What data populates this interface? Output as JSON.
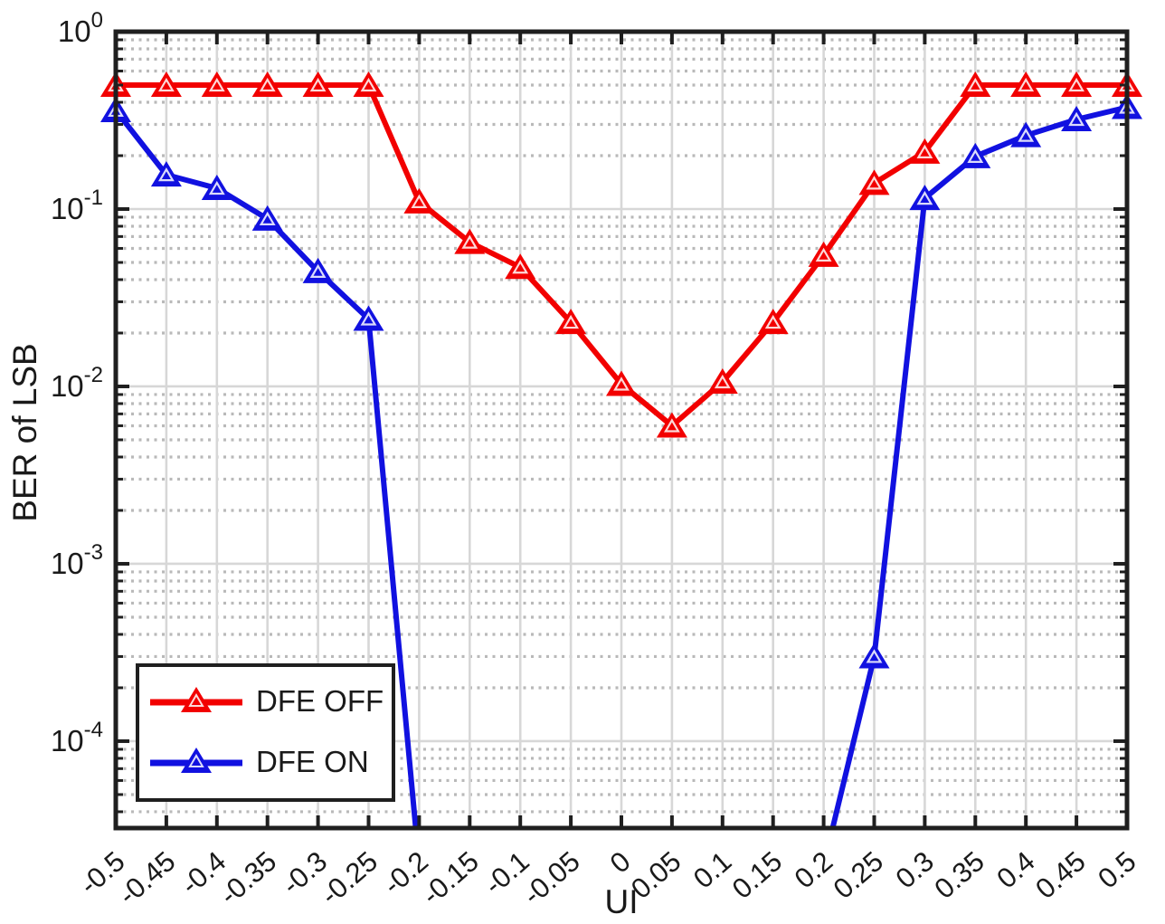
{
  "chart_data": {
    "type": "line",
    "title": "",
    "xlabel": "UI",
    "ylabel": "BER of LSB",
    "xlim": [
      -0.5,
      0.5
    ],
    "ylim": [
      3.2e-05,
      1
    ],
    "y_scale": "log",
    "y_decades_span": 4.49,
    "grid": {
      "vertical": "solid",
      "major_horizontal": "solid",
      "minor_horizontal": "dotted",
      "legend_position": "southwest"
    },
    "x_ticks": [
      -0.5,
      -0.45,
      -0.4,
      -0.35,
      -0.3,
      -0.25,
      -0.2,
      -0.15,
      -0.1,
      -0.05,
      0,
      0.05,
      0.1,
      0.15,
      0.2,
      0.25,
      0.3,
      0.35,
      0.4,
      0.45,
      0.5
    ],
    "x_tick_labels": [
      "-0.5",
      "-0.45",
      "-0.4",
      "-0.35",
      "-0.3",
      "-0.25",
      "-0.2",
      "-0.15",
      "-0.1",
      "-0.05",
      "0",
      "0.05",
      "0.1",
      "0.15",
      "0.2",
      "0.25",
      "0.3",
      "0.35",
      "0.4",
      "0.45",
      "0.5"
    ],
    "y_tick_base": "10",
    "y_tick_exponents": [
      "0",
      "-1",
      "-2",
      "-3",
      "-4"
    ],
    "colors": {
      "dfe_off": "#f20000",
      "dfe_on": "#1111e0",
      "axis": "#1f1f1f",
      "grid_solid": "#d7d7d7",
      "grid_dotted": "#b9b9b9"
    },
    "marker": "filled-up-triangle",
    "series": [
      {
        "name": "DFE OFF",
        "color": "#f20000",
        "x": [
          -0.5,
          -0.45,
          -0.4,
          -0.35,
          -0.3,
          -0.25,
          -0.2,
          -0.15,
          -0.1,
          -0.05,
          0,
          0.05,
          0.1,
          0.15,
          0.2,
          0.25,
          0.3,
          0.35,
          0.4,
          0.45,
          0.5
        ],
        "y": [
          0.5,
          0.5,
          0.5,
          0.5,
          0.5,
          0.5,
          0.11,
          0.065,
          0.047,
          0.023,
          0.0103,
          0.006,
          0.0106,
          0.023,
          0.055,
          0.14,
          0.21,
          0.5,
          0.5,
          0.5,
          0.5
        ]
      },
      {
        "name": "DFE ON",
        "color": "#1111e0",
        "x": [
          -0.5,
          -0.45,
          -0.4,
          -0.35,
          -0.3,
          -0.25,
          -0.2,
          -0.15,
          -0.1,
          -0.05,
          0,
          0.05,
          0.1,
          0.15,
          0.2,
          0.25,
          0.3,
          0.35,
          0.4,
          0.45,
          0.5
        ],
        "y": [
          0.36,
          0.156,
          0.131,
          0.088,
          0.0445,
          0.024,
          2e-05,
          null,
          null,
          null,
          null,
          null,
          null,
          null,
          2e-05,
          0.0003,
          0.115,
          0.198,
          0.26,
          0.32,
          0.375
        ],
        "note": "values at -0.2 and 0.2 drop below the axis floor (line exits plot bottom); no points plotted between -0.15 and 0.15"
      }
    ]
  }
}
